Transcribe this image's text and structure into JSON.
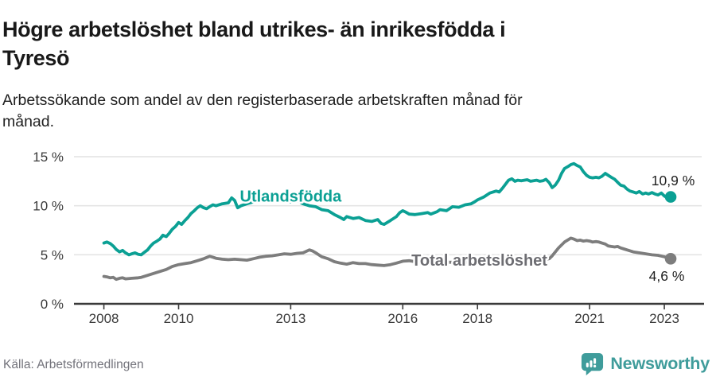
{
  "header": {
    "title_lines": [
      "Högre arbetslöshet bland utrikes- än inrikesfödda i",
      "Tyresö"
    ],
    "subtitle_lines": [
      "Arbetssökande som andel av den registerbaserade arbetskraften månad för",
      "månad."
    ]
  },
  "footer": {
    "source": "Källa: Arbetsförmedlingen",
    "brand": "Newsworthy",
    "brand_icon": "speech-bubble-bar-chart-icon"
  },
  "colors": {
    "foreign_born_line": "#0ba094",
    "total_line": "#7d7d7d",
    "total_label": "#6d6d72",
    "annotation_text": "#1f1f1f",
    "grid": "#e4e4e4",
    "axis": "#3a3a3a",
    "tick_text": "#3a3a3a",
    "brand_teal": "#3f9c9b",
    "background": "#ffffff"
  },
  "chart_data": {
    "type": "line",
    "title": "Högre arbetslöshet bland utrikes- än inrikesfödda i Tyresö",
    "subtitle": "Arbetssökande som andel av den registerbaserade arbetskraften månad för månad.",
    "xlabel": "",
    "ylabel": "",
    "grid": true,
    "legend_position": "inline-labels",
    "xlim": [
      2007.2,
      2024.0
    ],
    "ylim": [
      0,
      17.6
    ],
    "x_ticks": [
      {
        "value": 2008,
        "label": "2008"
      },
      {
        "value": 2010,
        "label": "2010"
      },
      {
        "value": 2013,
        "label": "2013"
      },
      {
        "value": 2016,
        "label": "2016"
      },
      {
        "value": 2018,
        "label": "2018"
      },
      {
        "value": 2021,
        "label": "2021"
      },
      {
        "value": 2023,
        "label": "2023"
      }
    ],
    "y_ticks": [
      {
        "value": 0,
        "label": "0 %"
      },
      {
        "value": 5,
        "label": "5 %"
      },
      {
        "value": 10,
        "label": "10 %"
      },
      {
        "value": 15,
        "label": "15 %"
      }
    ],
    "series": [
      {
        "name": "Utlandsfödda",
        "color": "#0ba094",
        "end_label": "10,9 %",
        "end_value": 10.9,
        "label_pos": [
          2013.0,
          11.0
        ],
        "end_label_side": "above",
        "points": [
          [
            2008.0,
            6.2
          ],
          [
            2008.08,
            6.3
          ],
          [
            2008.17,
            6.15
          ],
          [
            2008.25,
            5.9
          ],
          [
            2008.33,
            5.55
          ],
          [
            2008.42,
            5.3
          ],
          [
            2008.5,
            5.45
          ],
          [
            2008.58,
            5.2
          ],
          [
            2008.67,
            5.0
          ],
          [
            2008.75,
            5.1
          ],
          [
            2008.83,
            5.2
          ],
          [
            2008.92,
            5.05
          ],
          [
            2009.0,
            5.0
          ],
          [
            2009.08,
            5.25
          ],
          [
            2009.17,
            5.5
          ],
          [
            2009.25,
            5.9
          ],
          [
            2009.33,
            6.2
          ],
          [
            2009.42,
            6.4
          ],
          [
            2009.5,
            6.6
          ],
          [
            2009.58,
            7.0
          ],
          [
            2009.67,
            6.85
          ],
          [
            2009.75,
            7.2
          ],
          [
            2009.83,
            7.6
          ],
          [
            2009.92,
            7.9
          ],
          [
            2010.0,
            8.3
          ],
          [
            2010.08,
            8.1
          ],
          [
            2010.17,
            8.5
          ],
          [
            2010.25,
            8.8
          ],
          [
            2010.33,
            9.2
          ],
          [
            2010.42,
            9.5
          ],
          [
            2010.5,
            9.8
          ],
          [
            2010.58,
            10.0
          ],
          [
            2010.67,
            9.8
          ],
          [
            2010.75,
            9.7
          ],
          [
            2010.83,
            9.9
          ],
          [
            2010.92,
            10.1
          ],
          [
            2011.0,
            10.0
          ],
          [
            2011.17,
            10.2
          ],
          [
            2011.33,
            10.3
          ],
          [
            2011.42,
            10.8
          ],
          [
            2011.5,
            10.55
          ],
          [
            2011.58,
            9.8
          ],
          [
            2011.67,
            10.0
          ],
          [
            2011.83,
            10.2
          ],
          [
            2012.0,
            10.4
          ],
          [
            2012.17,
            10.5
          ],
          [
            2012.33,
            10.45
          ],
          [
            2012.5,
            10.6
          ],
          [
            2012.67,
            10.5
          ],
          [
            2012.83,
            10.6
          ],
          [
            2013.0,
            10.4
          ],
          [
            2013.17,
            10.55
          ],
          [
            2013.33,
            10.2
          ],
          [
            2013.5,
            10.0
          ],
          [
            2013.67,
            9.9
          ],
          [
            2013.83,
            9.6
          ],
          [
            2014.0,
            9.5
          ],
          [
            2014.17,
            9.1
          ],
          [
            2014.33,
            8.8
          ],
          [
            2014.42,
            8.6
          ],
          [
            2014.5,
            8.9
          ],
          [
            2014.67,
            8.7
          ],
          [
            2014.83,
            8.8
          ],
          [
            2015.0,
            8.5
          ],
          [
            2015.17,
            8.4
          ],
          [
            2015.33,
            8.6
          ],
          [
            2015.42,
            8.2
          ],
          [
            2015.5,
            8.1
          ],
          [
            2015.67,
            8.5
          ],
          [
            2015.83,
            8.9
          ],
          [
            2015.92,
            9.3
          ],
          [
            2016.0,
            9.5
          ],
          [
            2016.08,
            9.35
          ],
          [
            2016.17,
            9.15
          ],
          [
            2016.33,
            9.1
          ],
          [
            2016.5,
            9.2
          ],
          [
            2016.67,
            9.3
          ],
          [
            2016.75,
            9.15
          ],
          [
            2016.92,
            9.4
          ],
          [
            2017.0,
            9.6
          ],
          [
            2017.17,
            9.5
          ],
          [
            2017.33,
            9.9
          ],
          [
            2017.5,
            9.85
          ],
          [
            2017.67,
            10.1
          ],
          [
            2017.83,
            10.2
          ],
          [
            2017.92,
            10.4
          ],
          [
            2018.0,
            10.6
          ],
          [
            2018.17,
            10.9
          ],
          [
            2018.33,
            11.3
          ],
          [
            2018.5,
            11.5
          ],
          [
            2018.58,
            11.4
          ],
          [
            2018.67,
            11.8
          ],
          [
            2018.75,
            12.2
          ],
          [
            2018.83,
            12.6
          ],
          [
            2018.92,
            12.75
          ],
          [
            2019.0,
            12.5
          ],
          [
            2019.08,
            12.6
          ],
          [
            2019.17,
            12.55
          ],
          [
            2019.25,
            12.6
          ],
          [
            2019.33,
            12.65
          ],
          [
            2019.42,
            12.5
          ],
          [
            2019.5,
            12.55
          ],
          [
            2019.58,
            12.6
          ],
          [
            2019.67,
            12.5
          ],
          [
            2019.75,
            12.55
          ],
          [
            2019.83,
            12.7
          ],
          [
            2019.92,
            12.35
          ],
          [
            2020.0,
            11.85
          ],
          [
            2020.08,
            12.1
          ],
          [
            2020.17,
            12.6
          ],
          [
            2020.25,
            13.3
          ],
          [
            2020.33,
            13.8
          ],
          [
            2020.42,
            14.0
          ],
          [
            2020.5,
            14.2
          ],
          [
            2020.58,
            14.3
          ],
          [
            2020.67,
            14.1
          ],
          [
            2020.75,
            13.95
          ],
          [
            2020.83,
            13.5
          ],
          [
            2020.92,
            13.1
          ],
          [
            2021.0,
            12.9
          ],
          [
            2021.08,
            12.85
          ],
          [
            2021.17,
            12.9
          ],
          [
            2021.25,
            12.85
          ],
          [
            2021.33,
            13.0
          ],
          [
            2021.42,
            13.3
          ],
          [
            2021.5,
            13.1
          ],
          [
            2021.58,
            12.9
          ],
          [
            2021.67,
            12.7
          ],
          [
            2021.75,
            12.4
          ],
          [
            2021.83,
            12.1
          ],
          [
            2021.92,
            12.0
          ],
          [
            2022.0,
            11.7
          ],
          [
            2022.08,
            11.5
          ],
          [
            2022.17,
            11.4
          ],
          [
            2022.25,
            11.3
          ],
          [
            2022.33,
            11.45
          ],
          [
            2022.42,
            11.2
          ],
          [
            2022.5,
            11.3
          ],
          [
            2022.58,
            11.2
          ],
          [
            2022.67,
            11.35
          ],
          [
            2022.75,
            11.2
          ],
          [
            2022.83,
            11.1
          ],
          [
            2022.92,
            11.3
          ],
          [
            2023.0,
            11.0
          ],
          [
            2023.08,
            10.8
          ],
          [
            2023.17,
            10.9
          ]
        ]
      },
      {
        "name": "Total arbetslöshet",
        "color": "#7d7d7d",
        "label_color": "#6d6d72",
        "end_label": "4,6 %",
        "end_value": 4.6,
        "label_pos": [
          2018.05,
          4.45
        ],
        "end_label_side": "below",
        "points": [
          [
            2008.0,
            2.8
          ],
          [
            2008.08,
            2.75
          ],
          [
            2008.17,
            2.65
          ],
          [
            2008.25,
            2.7
          ],
          [
            2008.33,
            2.5
          ],
          [
            2008.42,
            2.6
          ],
          [
            2008.5,
            2.65
          ],
          [
            2008.58,
            2.55
          ],
          [
            2008.75,
            2.6
          ],
          [
            2008.92,
            2.65
          ],
          [
            2009.0,
            2.7
          ],
          [
            2009.17,
            2.9
          ],
          [
            2009.33,
            3.1
          ],
          [
            2009.5,
            3.3
          ],
          [
            2009.67,
            3.5
          ],
          [
            2009.83,
            3.8
          ],
          [
            2010.0,
            4.0
          ],
          [
            2010.17,
            4.1
          ],
          [
            2010.33,
            4.2
          ],
          [
            2010.5,
            4.4
          ],
          [
            2010.67,
            4.6
          ],
          [
            2010.83,
            4.85
          ],
          [
            2010.92,
            4.75
          ],
          [
            2011.0,
            4.65
          ],
          [
            2011.17,
            4.55
          ],
          [
            2011.33,
            4.5
          ],
          [
            2011.5,
            4.55
          ],
          [
            2011.67,
            4.5
          ],
          [
            2011.83,
            4.45
          ],
          [
            2012.0,
            4.6
          ],
          [
            2012.17,
            4.75
          ],
          [
            2012.33,
            4.85
          ],
          [
            2012.5,
            4.9
          ],
          [
            2012.67,
            5.0
          ],
          [
            2012.83,
            5.1
          ],
          [
            2013.0,
            5.05
          ],
          [
            2013.17,
            5.15
          ],
          [
            2013.33,
            5.2
          ],
          [
            2013.5,
            5.5
          ],
          [
            2013.58,
            5.4
          ],
          [
            2013.67,
            5.2
          ],
          [
            2013.83,
            4.8
          ],
          [
            2014.0,
            4.6
          ],
          [
            2014.17,
            4.3
          ],
          [
            2014.33,
            4.15
          ],
          [
            2014.5,
            4.05
          ],
          [
            2014.67,
            4.2
          ],
          [
            2014.83,
            4.1
          ],
          [
            2015.0,
            4.1
          ],
          [
            2015.17,
            4.0
          ],
          [
            2015.33,
            3.95
          ],
          [
            2015.5,
            3.9
          ],
          [
            2015.67,
            4.0
          ],
          [
            2015.83,
            4.15
          ],
          [
            2016.0,
            4.35
          ],
          [
            2016.17,
            4.4
          ],
          [
            2016.33,
            4.3
          ],
          [
            2016.5,
            4.25
          ],
          [
            2016.67,
            4.2
          ],
          [
            2016.83,
            4.25
          ],
          [
            2017.0,
            4.2
          ],
          [
            2017.25,
            4.25
          ],
          [
            2017.5,
            4.2
          ],
          [
            2017.75,
            4.25
          ],
          [
            2018.0,
            4.3
          ],
          [
            2018.25,
            4.3
          ],
          [
            2018.5,
            4.35
          ],
          [
            2018.75,
            4.3
          ],
          [
            2019.0,
            4.35
          ],
          [
            2019.25,
            4.4
          ],
          [
            2019.5,
            4.4
          ],
          [
            2019.75,
            4.5
          ],
          [
            2019.92,
            4.6
          ],
          [
            2020.0,
            4.9
          ],
          [
            2020.17,
            5.7
          ],
          [
            2020.33,
            6.3
          ],
          [
            2020.5,
            6.7
          ],
          [
            2020.58,
            6.6
          ],
          [
            2020.67,
            6.45
          ],
          [
            2020.75,
            6.5
          ],
          [
            2020.83,
            6.4
          ],
          [
            2020.92,
            6.45
          ],
          [
            2021.0,
            6.4
          ],
          [
            2021.08,
            6.3
          ],
          [
            2021.17,
            6.35
          ],
          [
            2021.25,
            6.3
          ],
          [
            2021.33,
            6.2
          ],
          [
            2021.42,
            6.1
          ],
          [
            2021.5,
            5.9
          ],
          [
            2021.58,
            5.85
          ],
          [
            2021.67,
            5.8
          ],
          [
            2021.75,
            5.85
          ],
          [
            2021.83,
            5.7
          ],
          [
            2021.92,
            5.6
          ],
          [
            2022.0,
            5.5
          ],
          [
            2022.17,
            5.3
          ],
          [
            2022.33,
            5.2
          ],
          [
            2022.5,
            5.1
          ],
          [
            2022.67,
            5.0
          ],
          [
            2022.83,
            4.95
          ],
          [
            2023.0,
            4.8
          ],
          [
            2023.17,
            4.6
          ]
        ]
      }
    ]
  }
}
